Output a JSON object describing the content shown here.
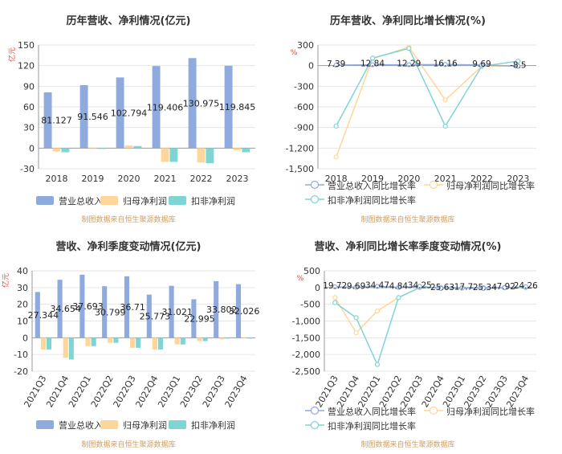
{
  "colors": {
    "revenue": "#8faadc",
    "net_profit": "#ffd699",
    "deducted_profit": "#7fd4d4",
    "axis_unit": "#e8413c",
    "source": "#c9a06b",
    "grid": "#e6e6e6",
    "axis": "#333333"
  },
  "chart_data": [
    {
      "id": "annual-amounts",
      "type": "bar",
      "title": "历年营收、净利情况(亿元)",
      "ylabel": "亿元",
      "ylim": [
        -30,
        150
      ],
      "yticks": [
        -30,
        0,
        30,
        60,
        90,
        120,
        150
      ],
      "categories": [
        "2018",
        "2019",
        "2020",
        "2021",
        "2022",
        "2023"
      ],
      "series": [
        {
          "name": "营业总收入",
          "values": [
            81.127,
            91.546,
            102.794,
            119.406,
            130.975,
            119.845
          ],
          "labels": [
            "81.127",
            "91.546",
            "102.794",
            "119.406",
            "130.975",
            "119.845"
          ]
        },
        {
          "name": "归母净利润",
          "values": [
            -5,
            -1,
            4,
            -20,
            -21,
            -3
          ]
        },
        {
          "name": "扣非净利润",
          "values": [
            -6,
            -1,
            3,
            -20,
            -22,
            -6
          ]
        }
      ],
      "source": "制图数据来自恒生聚源数据库"
    },
    {
      "id": "annual-growth",
      "type": "line",
      "title": "历年营收、净利同比增长情况(%)",
      "ylabel": "%",
      "ylim": [
        -1500,
        300
      ],
      "yticks": [
        -1500,
        -1200,
        -900,
        -600,
        -300,
        0,
        300
      ],
      "categories": [
        "2018",
        "2019",
        "2020",
        "2021",
        "2022",
        "2023"
      ],
      "series": [
        {
          "name": "营业总收入同比增长率",
          "values": [
            7.39,
            12.84,
            12.29,
            16.16,
            9.69,
            -8.5
          ],
          "labels": [
            "7.39",
            "12.84",
            "12.29",
            "16.16",
            "9.69",
            "-8.5"
          ]
        },
        {
          "name": "归母净利润同比增长率",
          "values": [
            -1330,
            100,
            270,
            -500,
            -10,
            0
          ]
        },
        {
          "name": "扣非净利润同比增长率",
          "values": [
            -880,
            110,
            250,
            -880,
            -10,
            65
          ]
        }
      ],
      "source": "制图数据来自恒生聚源数据库"
    },
    {
      "id": "quarterly-amounts",
      "type": "bar",
      "title": "营收、净利季度变动情况(亿元)",
      "ylabel": "亿元",
      "ylim": [
        -20,
        40
      ],
      "yticks": [
        -20,
        -10,
        0,
        10,
        20,
        30,
        40
      ],
      "categories": [
        "2021Q3",
        "2021Q4",
        "2022Q1",
        "2022Q2",
        "2022Q3",
        "2022Q4",
        "2023Q1",
        "2023Q2",
        "2023Q3",
        "2023Q4"
      ],
      "series": [
        {
          "name": "营业总收入",
          "values": [
            27.344,
            34.654,
            37.693,
            30.799,
            36.71,
            25.773,
            31.021,
            22.995,
            33.802,
            32.026
          ],
          "labels": [
            "27.344",
            "34.654",
            "37.693",
            "30.799",
            "36.71",
            "25.773",
            "31.021",
            "22.995",
            "33.802",
            "32.026"
          ]
        },
        {
          "name": "归母净利润",
          "values": [
            -7,
            -12,
            -5,
            -3,
            -6,
            -7,
            -4,
            -2,
            -1,
            0
          ]
        },
        {
          "name": "扣非净利润",
          "values": [
            -7,
            -13,
            -5,
            -3,
            -6,
            -7,
            -4,
            -2,
            0,
            0
          ]
        }
      ],
      "source": "制图数据来自恒生聚源数据库"
    },
    {
      "id": "quarterly-growth",
      "type": "line",
      "title": "营收、净利同比增长率季度变动情况(%)",
      "ylabel": "%",
      "ylim": [
        -2500,
        500
      ],
      "yticks": [
        -2500,
        -2000,
        -1500,
        -1000,
        -500,
        0,
        500
      ],
      "categories": [
        "2021Q3",
        "2021Q4",
        "2022Q1",
        "2022Q2",
        "2022Q3",
        "2022Q4",
        "2023Q1",
        "2023Q2",
        "2023Q3",
        "2023Q4"
      ],
      "series": [
        {
          "name": "营业总收入同比增长率",
          "values": [
            19.72,
            9.69,
            34.47,
            4.84,
            34.25,
            -25.63,
            -17.7,
            -25.34,
            -7.92,
            24.26
          ],
          "labels": [
            "19.72",
            "9.69",
            "34.47",
            "4.84",
            "34.25",
            "-25.63",
            "-17.7",
            "-25.34",
            "-7.92",
            "24.26"
          ]
        },
        {
          "name": "归母净利润同比增长率",
          "values": [
            -300,
            -1350,
            -700,
            -300,
            0,
            0,
            0,
            0,
            0,
            0
          ]
        },
        {
          "name": "扣非净利润同比增长率",
          "values": [
            -450,
            -900,
            -2300,
            -300,
            0,
            0,
            0,
            0,
            0,
            0
          ]
        }
      ],
      "source": "制图数据来自恒生聚源数据库"
    }
  ]
}
